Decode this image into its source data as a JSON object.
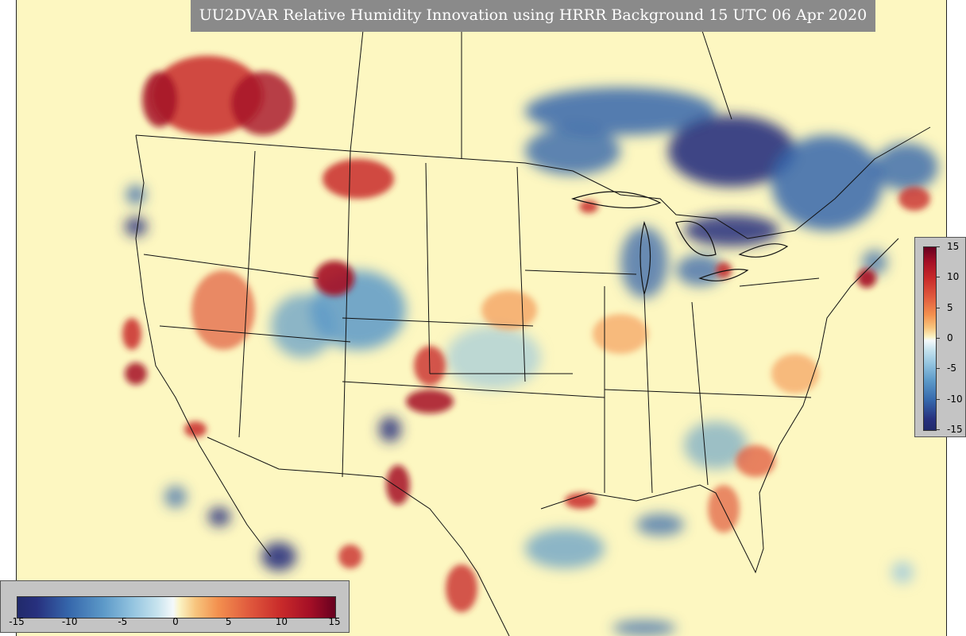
{
  "title": "UU2DVAR Relative Humidity Innovation using HRRR Background 15 UTC 06 Apr 2020",
  "colorbar": {
    "min": -15,
    "max": 15,
    "vertical_ticks": [
      "15",
      "10",
      "5",
      "0",
      "-5",
      "-10",
      "-15"
    ],
    "horizontal_ticks": [
      "-15",
      "-10",
      "-5",
      "0",
      "5",
      "10",
      "15"
    ],
    "colors": {
      "negative": "#212a6b",
      "neutral": "#fdf7c1",
      "positive": "#67001f"
    }
  },
  "map": {
    "background_color": "#fdf7c1"
  }
}
